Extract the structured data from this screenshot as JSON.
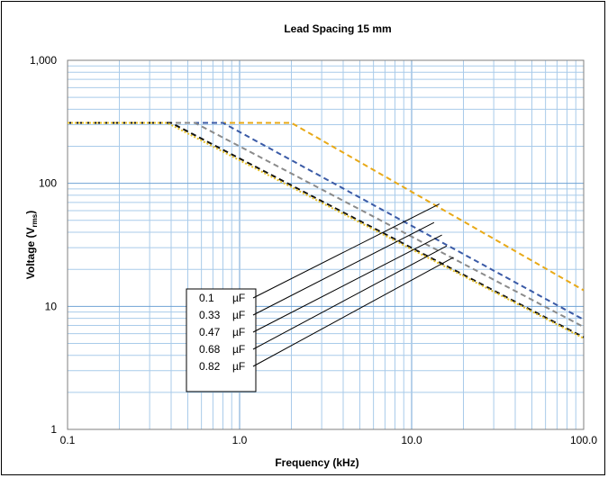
{
  "chart_data": {
    "type": "line",
    "title": "Lead Spacing 15 mm",
    "xlabel": "Frequency (kHz)",
    "ylabel": "Voltage (V",
    "ylabel_sub": "rms",
    "ylabel_close": ")",
    "x_scale": "log",
    "y_scale": "log",
    "xlim": [
      0.1,
      100
    ],
    "ylim": [
      1,
      1000
    ],
    "grid": true,
    "x_ticks": [
      {
        "value": 0.1,
        "label": "0.1"
      },
      {
        "value": 1,
        "label": "1.0"
      },
      {
        "value": 10,
        "label": "10.0"
      },
      {
        "value": 100,
        "label": "100.0"
      }
    ],
    "y_ticks": [
      {
        "value": 1,
        "label": "1"
      },
      {
        "value": 10,
        "label": "10"
      },
      {
        "value": 100,
        "label": "100"
      },
      {
        "value": 1000,
        "label": "1,000"
      }
    ],
    "series": [
      {
        "name": "0.1 µF",
        "label_value": "0.1",
        "label_unit": "µF",
        "color": "#E8A917",
        "dash": "6,4",
        "points": [
          [
            0.1,
            310
          ],
          [
            2.0,
            310
          ],
          [
            100,
            13.5
          ]
        ],
        "pointer_at": [
          14.5,
          68
        ]
      },
      {
        "name": "0.33 µF",
        "label_value": "0.33",
        "label_unit": "µF",
        "color": "#3A5AA6",
        "dash": "6,4",
        "points": [
          [
            0.1,
            310
          ],
          [
            0.8,
            310
          ],
          [
            100,
            7.8
          ]
        ],
        "pointer_at": [
          13.5,
          48
        ]
      },
      {
        "name": "0.47 µF",
        "label_value": "0.47",
        "label_unit": "µF",
        "color": "#8A8A8A",
        "dash": "6,4",
        "points": [
          [
            0.1,
            310
          ],
          [
            0.55,
            310
          ],
          [
            100,
            6.8
          ]
        ],
        "pointer_at": [
          15.0,
          38
        ]
      },
      {
        "name": "0.68 µF",
        "label_value": "0.68",
        "label_unit": "µF",
        "color": "#111111",
        "dash": "6,4",
        "points": [
          [
            0.1,
            310
          ],
          [
            0.4,
            310
          ],
          [
            100,
            5.6
          ]
        ],
        "pointer_at": [
          16.0,
          31
        ]
      },
      {
        "name": "0.82 µF",
        "label_value": "0.82",
        "label_unit": "µF",
        "color": "#E8C22A",
        "dash": "2,2",
        "points": [
          [
            0.1,
            310
          ],
          [
            0.38,
            310
          ],
          [
            100,
            5.5
          ]
        ],
        "pointer_at": [
          17.5,
          25
        ]
      }
    ]
  }
}
